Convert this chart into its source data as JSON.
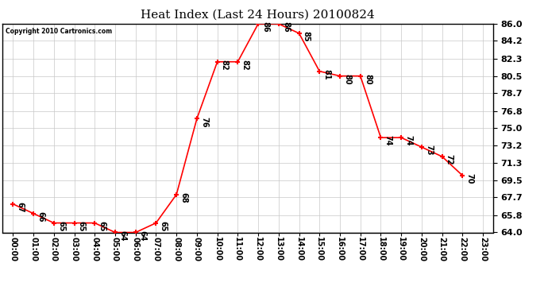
{
  "title": "Heat Index (Last 24 Hours) 20100824",
  "copyright": "Copyright 2010 Cartronics.com",
  "x_labels": [
    "00:00",
    "01:00",
    "02:00",
    "03:00",
    "04:00",
    "05:00",
    "06:00",
    "07:00",
    "08:00",
    "09:00",
    "10:00",
    "11:00",
    "12:00",
    "13:00",
    "14:00",
    "15:00",
    "16:00",
    "17:00",
    "18:00",
    "19:00",
    "20:00",
    "21:00",
    "22:00",
    "23:00"
  ],
  "y_values": [
    67,
    66,
    65,
    65,
    65,
    64,
    64,
    65,
    68,
    76,
    82,
    82,
    86,
    86,
    85,
    81,
    80.5,
    80.5,
    74,
    74,
    73,
    72,
    70
  ],
  "ylim": [
    64.0,
    86.0
  ],
  "yticks": [
    64.0,
    65.8,
    67.7,
    69.5,
    71.3,
    73.2,
    75.0,
    76.8,
    78.7,
    80.5,
    82.3,
    84.2,
    86.0
  ],
  "line_color": "#ff0000",
  "marker_color": "#ff0000",
  "bg_color": "#ffffff",
  "plot_bg_color": "#ffffff",
  "grid_color": "#c8c8c8",
  "title_fontsize": 11,
  "label_fontsize": 7,
  "annotation_fontsize": 7,
  "value_labels": [
    "67",
    "66",
    "65",
    "65",
    "65",
    "64",
    "64",
    "65",
    "68",
    "76",
    "82",
    "82",
    "86",
    "86",
    "85",
    "81",
    "80",
    "80",
    "74",
    "74",
    "73",
    "72",
    "70"
  ]
}
